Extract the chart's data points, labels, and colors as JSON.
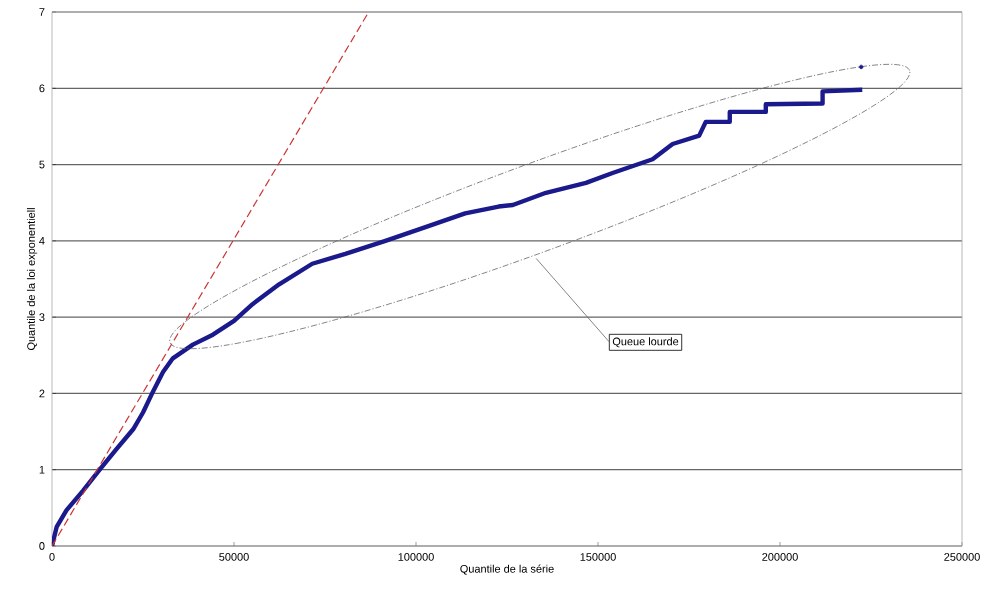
{
  "chart_data": {
    "type": "line",
    "xlabel": "Quantile de la série",
    "ylabel": "Quantile de la loi exponentiell",
    "xlim": [
      0,
      250000
    ],
    "xticks": [
      0,
      50000,
      100000,
      150000,
      200000,
      250000
    ],
    "ylim": [
      0,
      7
    ],
    "yticks": [
      0,
      1,
      2,
      3,
      4,
      5,
      6,
      7
    ],
    "grid": "y",
    "annotations": [
      "Queue lourde"
    ],
    "series": [
      {
        "color": "#1a1a8c",
        "x": [
          0,
          1280,
          4000,
          8600,
          13100,
          17700,
          22300,
          25000,
          27700,
          30500,
          33200,
          38700,
          44200,
          50000,
          55100,
          62400,
          71500,
          80600,
          91600,
          102600,
          113500,
          122700,
          126600,
          135700,
          146700,
          154000,
          165000,
          170500,
          177800,
          179600,
          186200,
          186200,
          196100,
          196100,
          211700,
          211700,
          222600
        ],
        "values": [
          0,
          0.25,
          0.47,
          0.73,
          1.0,
          1.27,
          1.53,
          1.75,
          2.02,
          2.28,
          2.46,
          2.64,
          2.77,
          2.95,
          3.17,
          3.43,
          3.7,
          3.83,
          4.0,
          4.18,
          4.36,
          4.45,
          4.47,
          4.63,
          4.76,
          4.89,
          5.07,
          5.27,
          5.38,
          5.56,
          5.56,
          5.69,
          5.69,
          5.79,
          5.8,
          5.96,
          5.98
        ]
      },
      {
        "type": "scatter",
        "color": "#1a1a8c",
        "x": [
          222300
        ],
        "values": [
          6.28
        ]
      },
      {
        "color": "#cc3333",
        "line_style": "dashed",
        "x": [
          0,
          87000
        ],
        "values": [
          0,
          7
        ]
      }
    ]
  }
}
